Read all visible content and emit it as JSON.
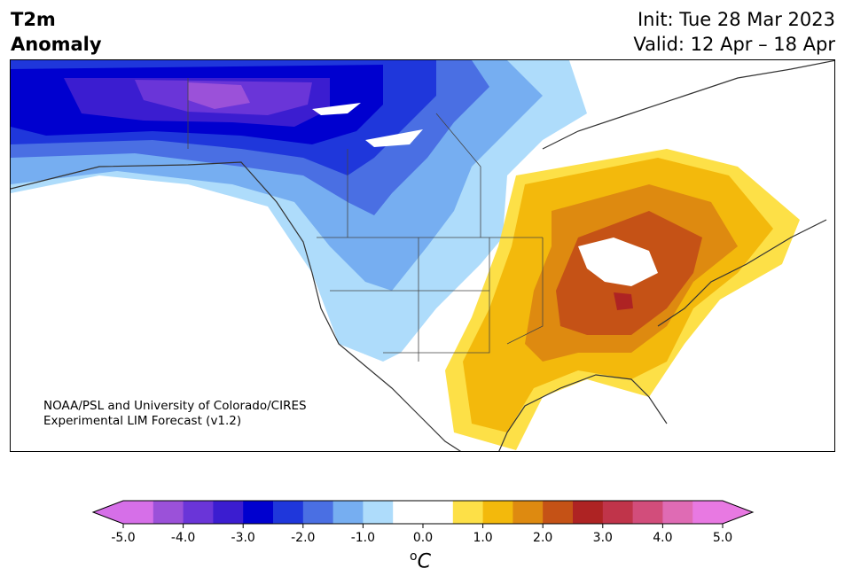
{
  "header": {
    "variable": "T2m",
    "subtitle": "Anomaly",
    "init": "Init: Tue 28 Mar 2023",
    "valid": "Valid: 12 Apr – 18 Apr"
  },
  "credit": {
    "line1": "NOAA/PSL and University of Colorado/CIRES",
    "line2": "Experimental LIM Forecast (v1.2)"
  },
  "colorbar": {
    "unit_base": "C",
    "unit_sup": "o",
    "ticks": [
      "-5.0",
      "-4.0",
      "-3.0",
      "-2.0",
      "-1.0",
      "0.0",
      "1.0",
      "2.0",
      "3.0",
      "4.0",
      "5.0"
    ],
    "colors": [
      "#d66fe8",
      "#9b51d9",
      "#6a35d8",
      "#3b1dd0",
      "#0000cf",
      "#1f37db",
      "#4a6fe3",
      "#76aef1",
      "#aedcfb",
      "#ffffff",
      "#ffffff",
      "#fde047",
      "#f3b90c",
      "#de8a10",
      "#c55216",
      "#ae2323",
      "#c0344a",
      "#d24d7b",
      "#df6bb4",
      "#e879e2"
    ],
    "under_color": "#d66fe8",
    "over_color": "#e879e2"
  },
  "map": {
    "region": "North America",
    "anomaly_summary": "Cold anomaly over Alaska/NW Canada; warm anomaly over central & eastern US"
  }
}
